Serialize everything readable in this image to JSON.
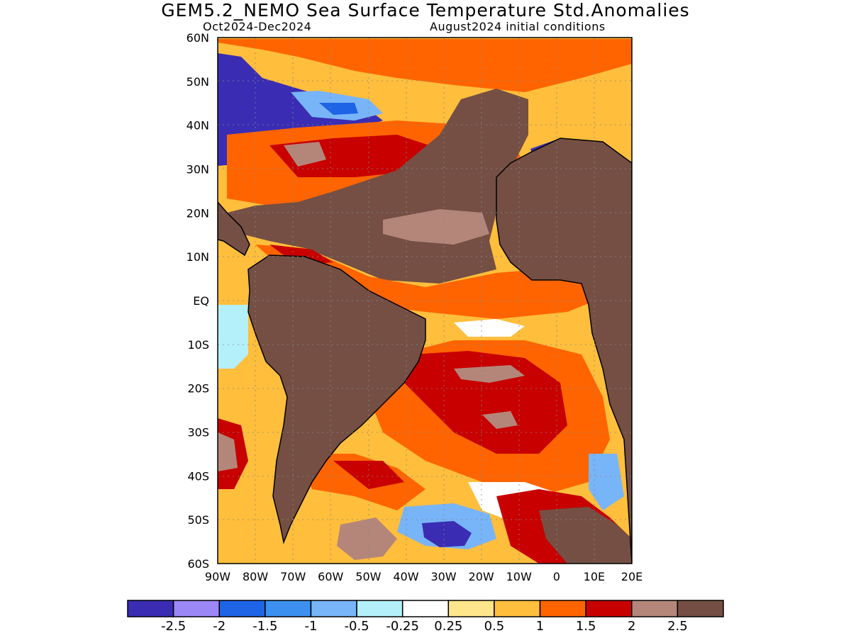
{
  "title": "GEM5.2_NEMO Sea Surface Temperature Std.Anomalies",
  "subtitle_left": "Oct2024-Dec2024",
  "subtitle_right": "August2024 initial conditions",
  "map": {
    "region": "Atlantic Ocean",
    "lat_range": [
      -60,
      60
    ],
    "lon_range": [
      -90,
      20
    ],
    "lat_ticks": [
      "60N",
      "50N",
      "40N",
      "30N",
      "20N",
      "10N",
      "EQ",
      "10S",
      "20S",
      "30S",
      "40S",
      "50S",
      "60S"
    ],
    "lon_ticks": [
      "90W",
      "80W",
      "70W",
      "60W",
      "50W",
      "40W",
      "30W",
      "20W",
      "10W",
      "0",
      "10E",
      "20E"
    ],
    "grid": "dotted",
    "land_color": "#754f44",
    "missing_color": "#3a2db3"
  },
  "colorbar": {
    "colors": [
      "#3a2db3",
      "#9b87f5",
      "#1e64e6",
      "#3c91f0",
      "#78b4f8",
      "#b4f0fa",
      "#ffffff",
      "#ffe68c",
      "#ffbe3c",
      "#ff6400",
      "#c80000",
      "#b4867a",
      "#754f44"
    ],
    "labels": [
      "-2.5",
      "-2",
      "-1.5",
      "-1",
      "-0.5",
      "-0.25",
      "0.25",
      "0.5",
      "1",
      "1.5",
      "2",
      "2.5"
    ]
  }
}
